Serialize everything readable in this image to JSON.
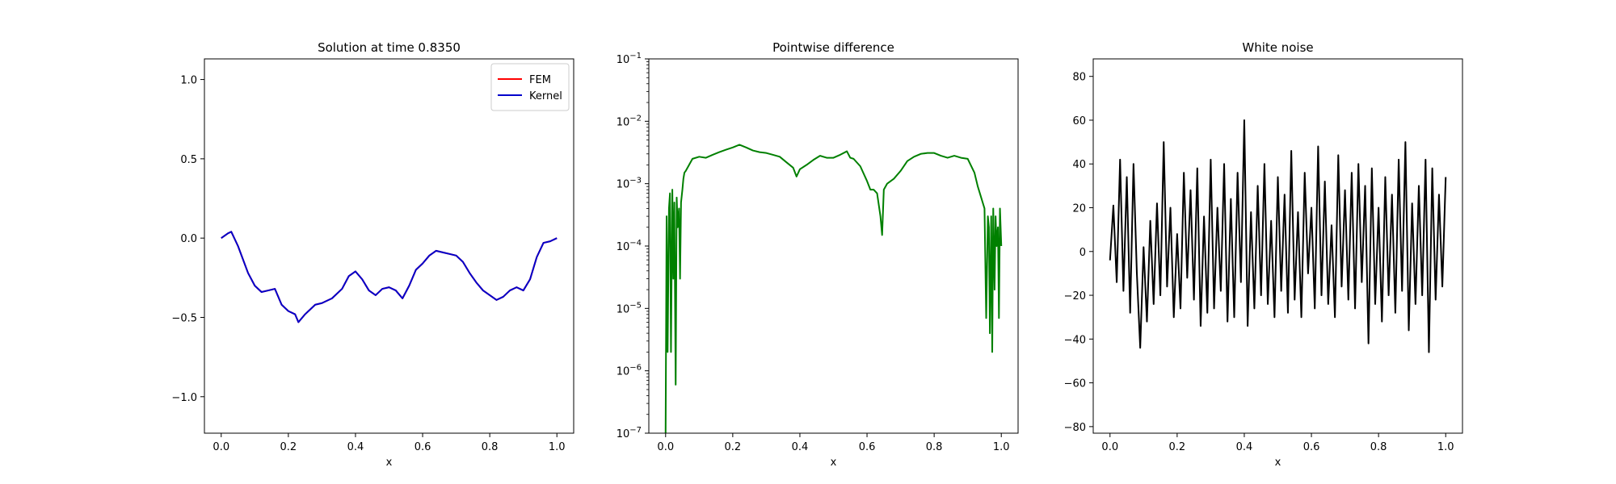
{
  "chart_data": [
    {
      "type": "line",
      "title": "Solution at time 0.8350",
      "xlabel": "x",
      "ylabel": "",
      "xlim": [
        -0.05,
        1.05
      ],
      "ylim": [
        -1.23,
        1.13
      ],
      "xticks": [
        0.0,
        0.2,
        0.4,
        0.6,
        0.8,
        1.0
      ],
      "xtick_labels": [
        "0.0",
        "0.2",
        "0.4",
        "0.6",
        "0.8",
        "1.0"
      ],
      "yticks": [
        -1.0,
        -0.5,
        0.0,
        0.5,
        1.0
      ],
      "ytick_labels": [
        "−1.0",
        "−0.5",
        "0.0",
        "0.5",
        "1.0"
      ],
      "legend_position": "top-right",
      "series": [
        {
          "name": "FEM",
          "color": "#ff0000",
          "x": [
            0.0,
            0.02,
            0.03,
            0.05,
            0.08,
            0.1,
            0.12,
            0.14,
            0.16,
            0.18,
            0.2,
            0.22,
            0.23,
            0.25,
            0.28,
            0.3,
            0.33,
            0.36,
            0.38,
            0.4,
            0.42,
            0.44,
            0.46,
            0.48,
            0.5,
            0.52,
            0.54,
            0.56,
            0.58,
            0.6,
            0.62,
            0.64,
            0.66,
            0.68,
            0.7,
            0.72,
            0.74,
            0.76,
            0.78,
            0.8,
            0.82,
            0.84,
            0.86,
            0.88,
            0.9,
            0.92,
            0.94,
            0.96,
            0.98,
            1.0
          ],
          "y": [
            0.0,
            0.03,
            0.04,
            -0.05,
            -0.22,
            -0.3,
            -0.34,
            -0.33,
            -0.32,
            -0.42,
            -0.46,
            -0.48,
            -0.53,
            -0.48,
            -0.42,
            -0.41,
            -0.38,
            -0.32,
            -0.24,
            -0.21,
            -0.26,
            -0.33,
            -0.36,
            -0.32,
            -0.31,
            -0.33,
            -0.38,
            -0.3,
            -0.2,
            -0.16,
            -0.11,
            -0.08,
            -0.09,
            -0.1,
            -0.11,
            -0.15,
            -0.22,
            -0.28,
            -0.33,
            -0.36,
            -0.39,
            -0.37,
            -0.33,
            -0.31,
            -0.33,
            -0.26,
            -0.12,
            -0.03,
            -0.02,
            0.0
          ]
        },
        {
          "name": "Kernel",
          "color": "#0000cc",
          "x": [
            0.0,
            0.02,
            0.03,
            0.05,
            0.08,
            0.1,
            0.12,
            0.14,
            0.16,
            0.18,
            0.2,
            0.22,
            0.23,
            0.25,
            0.28,
            0.3,
            0.33,
            0.36,
            0.38,
            0.4,
            0.42,
            0.44,
            0.46,
            0.48,
            0.5,
            0.52,
            0.54,
            0.56,
            0.58,
            0.6,
            0.62,
            0.64,
            0.66,
            0.68,
            0.7,
            0.72,
            0.74,
            0.76,
            0.78,
            0.8,
            0.82,
            0.84,
            0.86,
            0.88,
            0.9,
            0.92,
            0.94,
            0.96,
            0.98,
            1.0
          ],
          "y": [
            0.0,
            0.03,
            0.04,
            -0.05,
            -0.22,
            -0.3,
            -0.34,
            -0.33,
            -0.32,
            -0.42,
            -0.46,
            -0.48,
            -0.53,
            -0.48,
            -0.42,
            -0.41,
            -0.38,
            -0.32,
            -0.24,
            -0.21,
            -0.26,
            -0.33,
            -0.36,
            -0.32,
            -0.31,
            -0.33,
            -0.38,
            -0.3,
            -0.2,
            -0.16,
            -0.11,
            -0.08,
            -0.09,
            -0.1,
            -0.11,
            -0.15,
            -0.22,
            -0.28,
            -0.33,
            -0.36,
            -0.39,
            -0.37,
            -0.33,
            -0.31,
            -0.33,
            -0.26,
            -0.12,
            -0.03,
            -0.02,
            0.0
          ]
        }
      ]
    },
    {
      "type": "line",
      "title": "Pointwise difference",
      "xlabel": "x",
      "ylabel": "",
      "yscale": "log",
      "xlim": [
        -0.05,
        1.05
      ],
      "ylim": [
        1e-07,
        0.1
      ],
      "xticks": [
        0.0,
        0.2,
        0.4,
        0.6,
        0.8,
        1.0
      ],
      "xtick_labels": [
        "0.0",
        "0.2",
        "0.4",
        "0.6",
        "0.8",
        "1.0"
      ],
      "yticks": [
        1e-07,
        1e-06,
        1e-05,
        0.0001,
        0.001,
        0.01,
        0.1
      ],
      "ytick_base": [
        "10",
        "10",
        "10",
        "10",
        "10",
        "10",
        "10"
      ],
      "ytick_exp": [
        "−7",
        "−6",
        "−5",
        "−4",
        "−3",
        "−2",
        "−1"
      ],
      "series": [
        {
          "color": "#008000",
          "x": [
            0.0,
            0.003,
            0.006,
            0.01,
            0.013,
            0.016,
            0.02,
            0.023,
            0.026,
            0.03,
            0.033,
            0.036,
            0.04,
            0.043,
            0.046,
            0.05,
            0.053,
            0.056,
            0.06,
            0.07,
            0.08,
            0.1,
            0.12,
            0.14,
            0.16,
            0.18,
            0.2,
            0.22,
            0.24,
            0.26,
            0.28,
            0.3,
            0.32,
            0.34,
            0.36,
            0.38,
            0.39,
            0.4,
            0.42,
            0.44,
            0.46,
            0.48,
            0.5,
            0.52,
            0.54,
            0.55,
            0.56,
            0.58,
            0.6,
            0.61,
            0.62,
            0.63,
            0.64,
            0.645,
            0.65,
            0.66,
            0.68,
            0.7,
            0.72,
            0.74,
            0.76,
            0.78,
            0.8,
            0.82,
            0.84,
            0.86,
            0.88,
            0.9,
            0.92,
            0.93,
            0.94,
            0.95,
            0.955,
            0.96,
            0.963,
            0.966,
            0.97,
            0.973,
            0.976,
            0.98,
            0.983,
            0.986,
            0.99,
            0.993,
            0.996,
            1.0
          ],
          "y": [
            1e-07,
            0.0003,
            2e-06,
            0.0004,
            0.0007,
            2e-06,
            0.0008,
            3e-05,
            0.0005,
            6e-07,
            0.0006,
            0.0002,
            0.0004,
            3e-05,
            0.0005,
            0.0008,
            0.0012,
            0.0015,
            0.0016,
            0.002,
            0.0025,
            0.0027,
            0.0026,
            0.0029,
            0.0032,
            0.0035,
            0.0038,
            0.0042,
            0.0038,
            0.0034,
            0.0032,
            0.0031,
            0.0029,
            0.0027,
            0.0022,
            0.0018,
            0.0013,
            0.0017,
            0.002,
            0.0024,
            0.0028,
            0.0026,
            0.0026,
            0.0029,
            0.0033,
            0.0026,
            0.0025,
            0.0019,
            0.0011,
            0.0008,
            0.0008,
            0.0007,
            0.0003,
            0.00015,
            0.0008,
            0.001,
            0.0012,
            0.0016,
            0.0023,
            0.0027,
            0.003,
            0.0031,
            0.0031,
            0.0028,
            0.0026,
            0.0028,
            0.0026,
            0.0025,
            0.0015,
            0.0009,
            0.0006,
            0.0004,
            7e-06,
            0.0003,
            0.0002,
            4e-06,
            0.0003,
            2e-06,
            0.0004,
            2e-05,
            0.0003,
            0.0001,
            0.0002,
            7e-06,
            0.0004,
            0.0001
          ]
        }
      ]
    },
    {
      "type": "line",
      "title": "White noise",
      "xlabel": "x",
      "ylabel": "",
      "xlim": [
        -0.05,
        1.05
      ],
      "ylim": [
        -83,
        88
      ],
      "xticks": [
        0.0,
        0.2,
        0.4,
        0.6,
        0.8,
        1.0
      ],
      "xtick_labels": [
        "0.0",
        "0.2",
        "0.4",
        "0.6",
        "0.8",
        "1.0"
      ],
      "yticks": [
        -80,
        -60,
        -40,
        -20,
        0,
        20,
        40,
        60,
        80
      ],
      "ytick_labels": [
        "−80",
        "−60",
        "−40",
        "−20",
        "0",
        "20",
        "40",
        "60",
        "80"
      ],
      "series": [
        {
          "color": "#000000",
          "x": [
            0.0,
            0.01,
            0.02,
            0.03,
            0.04,
            0.05,
            0.06,
            0.07,
            0.08,
            0.09,
            0.1,
            0.11,
            0.12,
            0.13,
            0.14,
            0.15,
            0.16,
            0.17,
            0.18,
            0.19,
            0.2,
            0.21,
            0.22,
            0.23,
            0.24,
            0.25,
            0.26,
            0.27,
            0.28,
            0.29,
            0.3,
            0.31,
            0.32,
            0.33,
            0.34,
            0.35,
            0.36,
            0.37,
            0.38,
            0.39,
            0.4,
            0.41,
            0.42,
            0.43,
            0.44,
            0.45,
            0.46,
            0.47,
            0.48,
            0.49,
            0.5,
            0.51,
            0.52,
            0.53,
            0.54,
            0.55,
            0.56,
            0.57,
            0.58,
            0.59,
            0.6,
            0.61,
            0.62,
            0.63,
            0.64,
            0.65,
            0.66,
            0.67,
            0.68,
            0.69,
            0.7,
            0.71,
            0.72,
            0.73,
            0.74,
            0.75,
            0.76,
            0.77,
            0.78,
            0.79,
            0.8,
            0.81,
            0.82,
            0.83,
            0.84,
            0.85,
            0.86,
            0.87,
            0.88,
            0.89,
            0.9,
            0.91,
            0.92,
            0.93,
            0.94,
            0.95,
            0.96,
            0.97,
            0.98,
            0.99,
            1.0
          ],
          "y": [
            -4,
            21,
            -14,
            42,
            -18,
            34,
            -28,
            40,
            -10,
            -44,
            2,
            -32,
            14,
            -24,
            22,
            -20,
            50,
            -16,
            20,
            -30,
            8,
            -26,
            36,
            -12,
            28,
            -22,
            38,
            -34,
            16,
            -28,
            42,
            -26,
            20,
            -18,
            40,
            -32,
            24,
            -30,
            36,
            -14,
            60,
            -34,
            18,
            -26,
            30,
            -20,
            40,
            -24,
            14,
            -30,
            34,
            -18,
            26,
            -28,
            46,
            -22,
            18,
            -30,
            36,
            -10,
            20,
            -26,
            48,
            -20,
            32,
            -24,
            12,
            -30,
            44,
            -16,
            28,
            -22,
            36,
            -26,
            40,
            -14,
            30,
            -42,
            38,
            -24,
            20,
            -32,
            34,
            -20,
            26,
            -28,
            42,
            -18,
            50,
            -36,
            22,
            -24,
            30,
            -20,
            42,
            -46,
            38,
            -22,
            26,
            -16,
            34
          ]
        }
      ]
    }
  ]
}
